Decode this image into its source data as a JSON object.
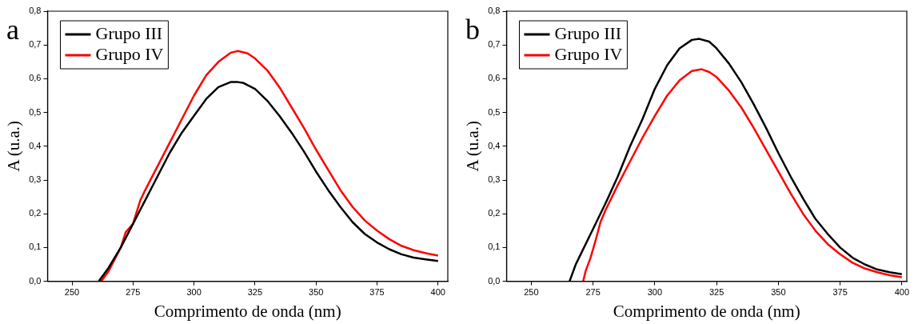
{
  "chart_data": [
    {
      "type": "line",
      "title": "a",
      "xlabel": "Comprimento de onda (nm)",
      "ylabel": "A (u.a.)",
      "xlim": [
        240,
        404
      ],
      "xticks": [
        250,
        275,
        300,
        325,
        350,
        375,
        400
      ],
      "ylim": [
        0,
        0.8
      ],
      "yticks": [
        {
          "value": 0,
          "label": "0,0"
        },
        {
          "value": 0.1,
          "label": "0,1"
        },
        {
          "value": 0.2,
          "label": "0,2"
        },
        {
          "value": 0.3,
          "label": "0,3"
        },
        {
          "value": 0.4,
          "label": "0,4"
        },
        {
          "value": 0.5,
          "label": "0,5"
        },
        {
          "value": 0.6,
          "label": "0,6"
        },
        {
          "value": 0.7,
          "label": "0,7"
        },
        {
          "value": 0.8,
          "label": "0,8"
        }
      ],
      "grid": false,
      "legend": "top left",
      "marker": "none",
      "line_style": "solid",
      "series": [
        {
          "name": "Grupo III",
          "color": "#000000",
          "x": [
            261,
            265,
            270,
            275,
            280,
            285,
            290,
            295,
            300,
            305,
            310,
            315,
            318,
            320,
            325,
            330,
            335,
            340,
            345,
            350,
            355,
            360,
            365,
            370,
            375,
            380,
            385,
            390,
            395,
            400
          ],
          "values": [
            0,
            0.04,
            0.1,
            0.17,
            0.24,
            0.31,
            0.38,
            0.44,
            0.49,
            0.54,
            0.575,
            0.59,
            0.59,
            0.588,
            0.57,
            0.535,
            0.49,
            0.44,
            0.385,
            0.325,
            0.27,
            0.22,
            0.175,
            0.14,
            0.115,
            0.095,
            0.08,
            0.07,
            0.065,
            0.06
          ]
        },
        {
          "name": "Grupo IV",
          "color": "#ff0000",
          "x": [
            262,
            265,
            270,
            272,
            275,
            278,
            280,
            285,
            290,
            295,
            300,
            305,
            310,
            315,
            318,
            322,
            325,
            330,
            335,
            340,
            345,
            350,
            355,
            360,
            365,
            370,
            375,
            380,
            385,
            390,
            395,
            400
          ],
          "values": [
            0,
            0.03,
            0.1,
            0.145,
            0.17,
            0.24,
            0.27,
            0.34,
            0.41,
            0.48,
            0.55,
            0.61,
            0.65,
            0.677,
            0.682,
            0.675,
            0.66,
            0.625,
            0.575,
            0.515,
            0.455,
            0.39,
            0.33,
            0.27,
            0.22,
            0.18,
            0.15,
            0.125,
            0.105,
            0.092,
            0.083,
            0.076
          ]
        }
      ]
    },
    {
      "type": "line",
      "title": "b",
      "xlabel": "Comprimento de onda (nm)",
      "ylabel": "A (u.a.)",
      "xlim": [
        240,
        402
      ],
      "xticks": [
        250,
        275,
        300,
        325,
        350,
        375,
        400
      ],
      "ylim": [
        0,
        0.8
      ],
      "yticks": [
        {
          "value": 0,
          "label": "0,0"
        },
        {
          "value": 0.1,
          "label": "0,1"
        },
        {
          "value": 0.2,
          "label": "0,2"
        },
        {
          "value": 0.3,
          "label": "0,3"
        },
        {
          "value": 0.4,
          "label": "0,4"
        },
        {
          "value": 0.5,
          "label": "0,5"
        },
        {
          "value": 0.6,
          "label": "0,6"
        },
        {
          "value": 0.7,
          "label": "0,7"
        },
        {
          "value": 0.8,
          "label": "0,8"
        }
      ],
      "grid": false,
      "legend": "top left",
      "marker": "none",
      "line_style": "solid",
      "series": [
        {
          "name": "Grupo III",
          "color": "#000000",
          "x": [
            265.5,
            268,
            270,
            275,
            280,
            285,
            290,
            295,
            300,
            305,
            310,
            315,
            318,
            322,
            325,
            330,
            335,
            340,
            345,
            350,
            355,
            360,
            365,
            370,
            375,
            380,
            385,
            390,
            395,
            400
          ],
          "values": [
            0,
            0.05,
            0.08,
            0.155,
            0.23,
            0.31,
            0.4,
            0.48,
            0.57,
            0.64,
            0.69,
            0.715,
            0.718,
            0.71,
            0.69,
            0.645,
            0.59,
            0.525,
            0.455,
            0.38,
            0.31,
            0.245,
            0.185,
            0.14,
            0.1,
            0.07,
            0.05,
            0.035,
            0.027,
            0.021
          ]
        },
        {
          "name": "Grupo IV",
          "color": "#ff0000",
          "x": [
            271,
            272,
            274,
            276,
            278,
            280,
            285,
            290,
            295,
            300,
            305,
            310,
            315,
            319,
            322,
            325,
            330,
            335,
            340,
            345,
            350,
            355,
            360,
            365,
            370,
            375,
            380,
            385,
            390,
            395,
            400
          ],
          "values": [
            0,
            0.03,
            0.07,
            0.12,
            0.175,
            0.21,
            0.285,
            0.355,
            0.425,
            0.49,
            0.55,
            0.595,
            0.623,
            0.628,
            0.62,
            0.605,
            0.565,
            0.515,
            0.455,
            0.39,
            0.325,
            0.26,
            0.2,
            0.15,
            0.11,
            0.08,
            0.055,
            0.038,
            0.027,
            0.018,
            0.012
          ]
        }
      ]
    }
  ]
}
